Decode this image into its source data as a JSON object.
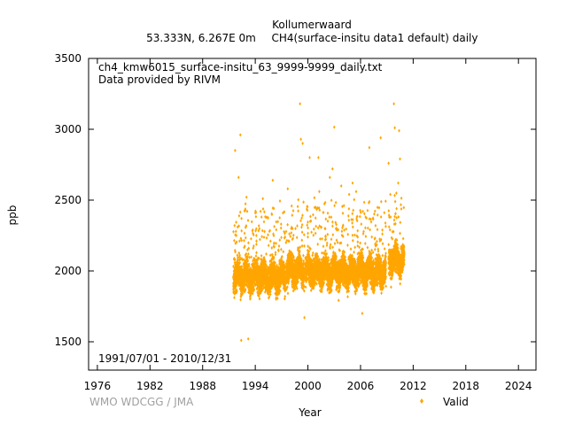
{
  "chart_data": {
    "type": "scatter",
    "title": "Kollumerwaard",
    "subtitle_location": "53.333N, 6.267E 0m",
    "subtitle_dataset": "CH4(surface-insitu data1 default) daily",
    "file_label": "ch4_kmw6015_surface-insitu_63_9999-9999_daily.txt",
    "provider_label": "Data provided by RIVM",
    "period_label": "1991/07/01 - 2010/12/31",
    "credit": "WMO WDCGG / JMA",
    "xlabel": "Year",
    "ylabel": "ppb",
    "xlim": [
      1975,
      2026
    ],
    "ylim": [
      1300,
      3500
    ],
    "xticks": [
      1976,
      1982,
      1988,
      1994,
      2000,
      2006,
      2012,
      2018,
      2024
    ],
    "yticks": [
      1500,
      2000,
      2500,
      3000,
      3500
    ],
    "legend_position": "bottom-right",
    "grid": false,
    "series": [
      {
        "name": "Valid",
        "color": "#FFA500",
        "marker": "diamond",
        "segments": [
          {
            "start": 1991.5,
            "end": 1997.4,
            "center": 1960,
            "spread": 95
          },
          {
            "start": 1997.5,
            "end": 1999.6,
            "center": 2010,
            "spread": 95
          },
          {
            "start": 1999.7,
            "end": 2002.0,
            "center": 2000,
            "spread": 90
          },
          {
            "start": 2002.0,
            "end": 2008.9,
            "center": 1995,
            "spread": 95
          },
          {
            "start": 2009.2,
            "end": 2010.99,
            "center": 2080,
            "spread": 90
          }
        ],
        "outliers": [
          [
            1991.7,
            2850
          ],
          [
            1992.1,
            2660
          ],
          [
            1992.3,
            2960
          ],
          [
            1992.4,
            1510
          ],
          [
            1993.2,
            1520
          ],
          [
            1993.0,
            2520
          ],
          [
            1994.6,
            2420
          ],
          [
            1996.0,
            2640
          ],
          [
            1997.7,
            2580
          ],
          [
            1998.3,
            2230
          ],
          [
            1999.1,
            3180
          ],
          [
            1999.2,
            2930
          ],
          [
            1999.4,
            2900
          ],
          [
            1999.6,
            1670
          ],
          [
            2000.2,
            2800
          ],
          [
            2001.2,
            2800
          ],
          [
            2001.3,
            2560
          ],
          [
            2002.5,
            2660
          ],
          [
            2003.0,
            3015
          ],
          [
            2002.8,
            2720
          ],
          [
            2003.8,
            2600
          ],
          [
            2004.7,
            2540
          ],
          [
            2005.1,
            2620
          ],
          [
            2005.5,
            2560
          ],
          [
            2006.2,
            1700
          ],
          [
            2007.0,
            2870
          ],
          [
            2008.3,
            2940
          ],
          [
            2009.2,
            2760
          ],
          [
            2009.4,
            2540
          ],
          [
            2009.8,
            3180
          ],
          [
            2009.9,
            3010
          ],
          [
            2010.4,
            2990
          ],
          [
            2010.5,
            2790
          ],
          [
            2010.3,
            2620
          ],
          [
            2010.1,
            2440
          ]
        ]
      }
    ]
  }
}
